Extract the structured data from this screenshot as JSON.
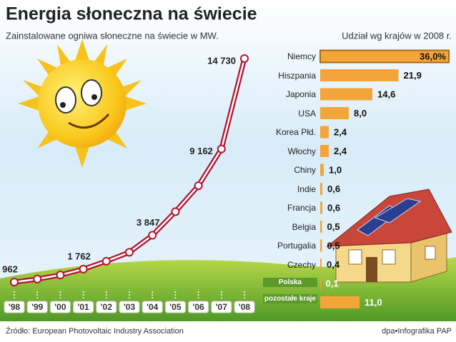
{
  "title": "Energia słoneczna na świecie",
  "source": "Źródło: European Photovoltaic Industry Association",
  "credit": "dpa•Infografika PAP",
  "chart_data": [
    {
      "type": "line",
      "title": "Zainstalowane ogniwa słoneczne na świecie w MW.",
      "categories": [
        "'98",
        "'99",
        "'00",
        "'01",
        "'02",
        "'03",
        "'04",
        "'05",
        "'06",
        "'07",
        "'08"
      ],
      "values": [
        962,
        1150,
        1400,
        1762,
        2250,
        2800,
        3847,
        5300,
        6900,
        9162,
        14730
      ],
      "value_labels": [
        "962",
        null,
        null,
        "1 762",
        null,
        null,
        "3 847",
        null,
        null,
        "9 162",
        "14 730"
      ],
      "color": "#b5122e"
    },
    {
      "type": "bar",
      "title": "Udział wg krajów w 2008 r.",
      "categories": [
        "Niemcy",
        "Hiszpania",
        "Japonia",
        "USA",
        "Korea Płd.",
        "Włochy",
        "Chiny",
        "Indie",
        "Francja",
        "Belgia",
        "Portugalia",
        "Czechy",
        "Polska",
        "pozostałe kraje"
      ],
      "values": [
        36.0,
        21.9,
        14.6,
        8.0,
        2.4,
        2.4,
        1.0,
        0.6,
        0.6,
        0.5,
        0.5,
        0.4,
        0.1,
        11.0
      ],
      "value_labels": [
        "36,0%",
        "21,9",
        "14,6",
        "8,0",
        "2,4",
        "2,4",
        "1,0",
        "0,6",
        "0,6",
        "0,5",
        "0,5",
        "0,4",
        "0,1",
        "11,0"
      ],
      "color": "#f4a53a"
    }
  ]
}
